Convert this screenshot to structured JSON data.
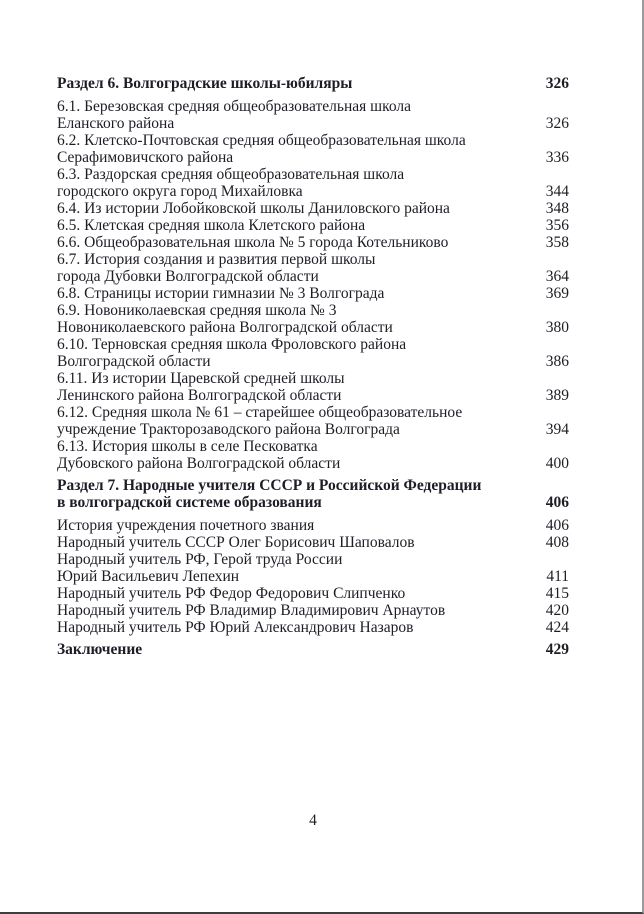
{
  "footer": {
    "page_number": "4"
  },
  "toc": {
    "entries": [
      {
        "type": "section",
        "lines": [
          "Раздел 6. Волгоградские школы-юбиляры"
        ],
        "page": "326"
      },
      {
        "type": "item",
        "lines": [
          "6.1. Березовская средняя общеобразовательная школа",
          "Еланского района"
        ],
        "page": "326"
      },
      {
        "type": "item",
        "lines": [
          "6.2. Клетско-Почтовская средняя общеобразовательная школа",
          "Серафимовичского района"
        ],
        "page": "336"
      },
      {
        "type": "item",
        "lines": [
          "6.3. Раздорская средняя общеобразовательная школа",
          "городского округа город Михайловка"
        ],
        "page": "344"
      },
      {
        "type": "item",
        "lines": [
          "6.4. Из истории Лобойковской школы Даниловского района"
        ],
        "page": "348"
      },
      {
        "type": "item",
        "lines": [
          "6.5. Клетская средняя школа Клетского района"
        ],
        "page": "356"
      },
      {
        "type": "item",
        "lines": [
          "6.6. Общеобразовательная школа № 5 города Котельниково"
        ],
        "page": "358"
      },
      {
        "type": "item",
        "lines": [
          "6.7. История создания и развития первой школы",
          "города Дубовки Волгоградской области"
        ],
        "page": "364"
      },
      {
        "type": "item",
        "lines": [
          "6.8. Страницы истории гимназии № 3 Волгограда"
        ],
        "page": "369"
      },
      {
        "type": "item",
        "lines": [
          "6.9. Новониколаевская средняя школа № 3",
          "Новониколаевского района Волгоградской области"
        ],
        "page": "380"
      },
      {
        "type": "item",
        "lines": [
          "6.10. Терновская средняя школа Фроловского района",
          "Волгоградской области"
        ],
        "page": "386"
      },
      {
        "type": "item",
        "lines": [
          "6.11. Из истории Царевской средней школы",
          "Ленинского района Волгоградской области"
        ],
        "page": "389"
      },
      {
        "type": "item",
        "lines": [
          "6.12. Средняя школа № 61 – старейшее общеобразовательное",
          "учреждение Тракторозаводского района Волгограда"
        ],
        "page": "394"
      },
      {
        "type": "item",
        "lines": [
          "6.13. История школы в селе Песковатка",
          "Дубовского района Волгоградской области"
        ],
        "page": "400"
      },
      {
        "type": "section",
        "lines": [
          "Раздел 7. Народные учителя СССР и Российской Федерации",
          "в волгоградской системе образования"
        ],
        "page": "406"
      },
      {
        "type": "item",
        "lines": [
          "История учреждения почетного звания"
        ],
        "page": "406"
      },
      {
        "type": "item",
        "lines": [
          "Народный учитель СССР Олег Борисович Шаповалов"
        ],
        "page": "408"
      },
      {
        "type": "item",
        "lines": [
          "Народный учитель РФ, Герой труда России",
          "Юрий Васильевич Лепехин"
        ],
        "page": "411"
      },
      {
        "type": "item",
        "lines": [
          "Народный учитель РФ Федор Федорович Слипченко"
        ],
        "page": "415"
      },
      {
        "type": "item",
        "lines": [
          "Народный учитель РФ Владимир Владимирович Арнаутов"
        ],
        "page": "420"
      },
      {
        "type": "item",
        "lines": [
          "Народный учитель РФ Юрий Александрович Назаров"
        ],
        "page": "424"
      },
      {
        "type": "section",
        "lines": [
          "Заключение"
        ],
        "page": "429"
      }
    ]
  }
}
